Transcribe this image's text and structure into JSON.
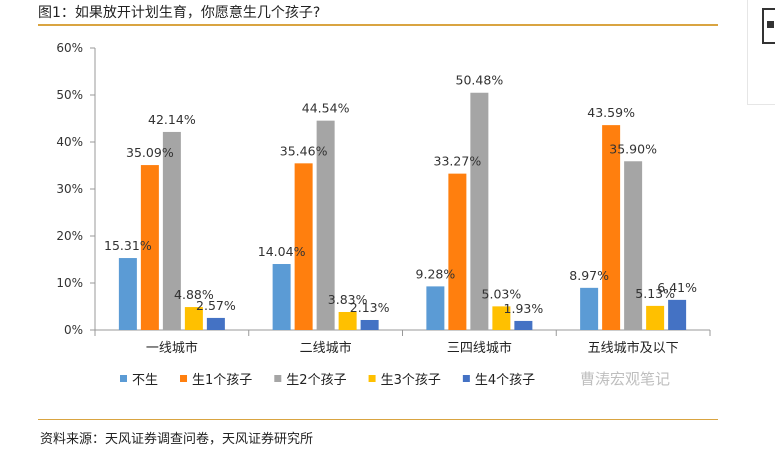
{
  "figure": {
    "title": "图1：如果放开计划生育，你愿意生几个孩子?",
    "source": "资料来源：天风证券调查问卷，天风证券研究所",
    "watermark": "曹涛宏观笔记"
  },
  "chart_data": {
    "type": "bar",
    "categories": [
      "一线城市",
      "二线城市",
      "三四线城市",
      "五线城市及以下"
    ],
    "series": [
      {
        "name": "不生",
        "color": "#5b9bd5",
        "values": [
          15.31,
          14.04,
          9.28,
          8.97
        ],
        "labels": [
          "15.31%",
          "14.04%",
          "9.28%",
          "8.97%"
        ]
      },
      {
        "name": "生1个孩子",
        "color": "#ff7f0e",
        "values": [
          35.09,
          35.46,
          33.27,
          43.59
        ],
        "labels": [
          "35.09%",
          "35.46%",
          "33.27%",
          "43.59%"
        ]
      },
      {
        "name": "生2个孩子",
        "color": "#a5a5a5",
        "values": [
          42.14,
          44.54,
          50.48,
          35.9
        ],
        "labels": [
          "42.14%",
          "44.54%",
          "50.48%",
          "35.90%"
        ]
      },
      {
        "name": "生3个孩子",
        "color": "#ffc000",
        "values": [
          4.88,
          3.83,
          5.03,
          5.13
        ],
        "labels": [
          "4.88%",
          "3.83%",
          "5.03%",
          "5.13%"
        ]
      },
      {
        "name": "生4个孩子",
        "color": "#4472c4",
        "values": [
          2.57,
          2.13,
          1.93,
          6.41
        ],
        "labels": [
          "2.57%",
          "2.13%",
          "1.93%",
          "6.41%"
        ]
      }
    ],
    "y_ticks": [
      "0%",
      "10%",
      "20%",
      "30%",
      "40%",
      "50%",
      "60%"
    ],
    "ylim": [
      0,
      60
    ],
    "grid": false,
    "legend_position": "bottom"
  }
}
